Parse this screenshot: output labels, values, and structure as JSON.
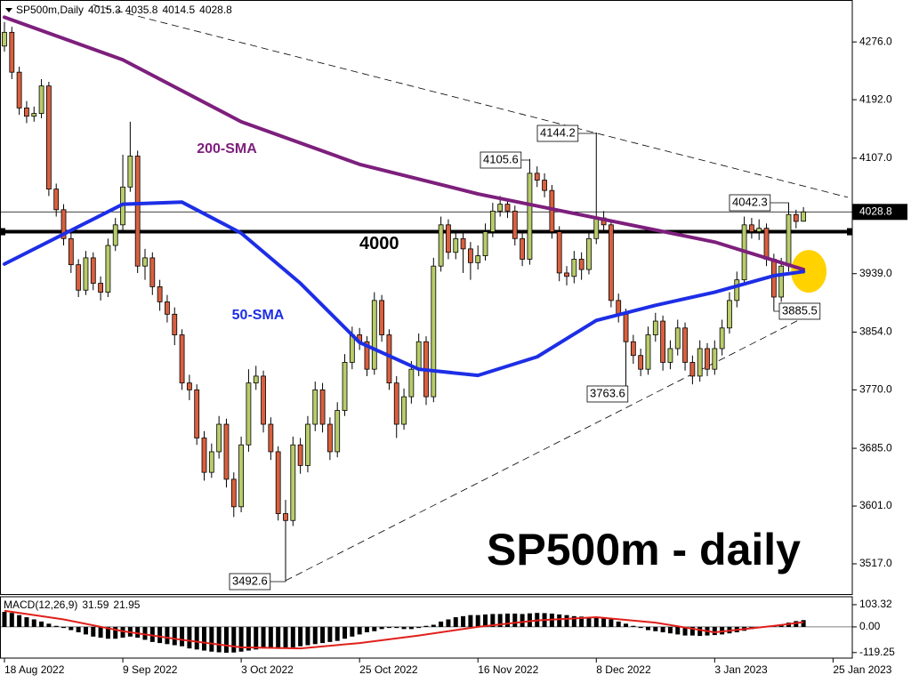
{
  "chart_data": {
    "type": "candlestick",
    "symbol": "SP500m,Daily",
    "watermark": "SP500m - daily",
    "up_color": "#b8cc6a",
    "down_color": "#d9603f",
    "xlim": [
      -0.6,
      114.6
    ],
    "xticks": [
      {
        "value": 0,
        "label": "18 Aug 2022"
      },
      {
        "value": 16,
        "label": "9 Sep 2022"
      },
      {
        "value": 32,
        "label": "3 Oct 2022"
      },
      {
        "value": 48,
        "label": "25 Oct 2022"
      },
      {
        "value": 64,
        "label": "16 Nov 2022"
      },
      {
        "value": 80,
        "label": "8 Dec 2022"
      },
      {
        "value": 96,
        "label": "3 Jan 2023"
      },
      {
        "value": 112,
        "label": "25 Jan 2023"
      }
    ],
    "ylim": [
      3473,
      4337
    ],
    "yticks": [
      {
        "value": 4276,
        "label": "4276.0"
      },
      {
        "value": 4192,
        "label": "4192.0"
      },
      {
        "value": 4107,
        "label": "4107.0"
      },
      {
        "value": 3939,
        "label": "3939.0"
      },
      {
        "value": 3854,
        "label": "3854.0"
      },
      {
        "value": 3770,
        "label": "3770.0"
      },
      {
        "value": 3685,
        "label": "3685.0"
      },
      {
        "value": 3601,
        "label": "3601.0"
      },
      {
        "value": 3517,
        "label": "3517.0"
      }
    ],
    "level": 4000,
    "open": [
      4270,
      4290,
      4232,
      4180,
      4168,
      4172,
      4212,
      4062,
      4032,
      3990,
      3952,
      3915,
      3962,
      3925,
      3912,
      3980,
      4010,
      4065,
      4110,
      3950,
      3962,
      3920,
      3898,
      3880,
      3850,
      3780,
      3770,
      3700,
      3650,
      3680,
      3720,
      3640,
      3600,
      3690,
      3780,
      3790,
      3720,
      3680,
      3590,
      3580,
      3690,
      3660,
      3720,
      3770,
      3720,
      3680,
      3740,
      3810,
      3850,
      3840,
      3800,
      3900,
      3850,
      3780,
      3720,
      3760,
      3800,
      3840,
      3760,
      3950,
      4010,
      3970,
      3990,
      3975,
      3955,
      3965,
      4000,
      4030,
      4040,
      4030,
      3990,
      3960,
      4085,
      4075,
      4060,
      4000,
      3940,
      3935,
      3960,
      3945,
      3990,
      4020,
      4010,
      3900,
      3880,
      3840,
      3820,
      3800,
      3850,
      3870,
      3810,
      3830,
      3860,
      3810,
      3790,
      3830,
      3800,
      3830,
      3860,
      3900,
      3930,
      4010,
      4000,
      4005,
      3960,
      3905,
      3950,
      4025,
      4015.3
    ],
    "high": [
      4305,
      4298,
      4240,
      4190,
      4182,
      4222,
      4218,
      4070,
      4040,
      3998,
      3960,
      3972,
      3970,
      3935,
      3990,
      4020,
      4112,
      4160,
      4118,
      3975,
      3970,
      3930,
      3908,
      3890,
      3858,
      3792,
      3778,
      3710,
      3692,
      3732,
      3728,
      3650,
      3702,
      3800,
      3805,
      3798,
      3730,
      3688,
      3610,
      3702,
      3700,
      3732,
      3782,
      3780,
      3730,
      3752,
      3822,
      3862,
      3860,
      3848,
      3912,
      3908,
      3858,
      3790,
      3772,
      3812,
      3852,
      3848,
      3962,
      4022,
      4018,
      4002,
      4000,
      3985,
      3980,
      4012,
      4042,
      4052,
      4048,
      4038,
      3998,
      4105.6,
      4095,
      4085,
      4068,
      4008,
      3950,
      3972,
      3970,
      4002,
      4144.2,
      4030,
      4018,
      3910,
      3888,
      3850,
      3830,
      3862,
      3882,
      3878,
      3842,
      3872,
      3868,
      3820,
      3842,
      3838,
      3842,
      3872,
      3912,
      3942,
      4022,
      4020,
      4018,
      4012,
      3968,
      3962,
      4042.3,
      4032,
      4035.8
    ],
    "low": [
      4262,
      4222,
      4170,
      4158,
      4160,
      4165,
      4052,
      4022,
      3980,
      3940,
      3905,
      3908,
      3915,
      3900,
      3905,
      3972,
      4002,
      4058,
      3940,
      3930,
      3908,
      3885,
      3868,
      3835,
      3770,
      3755,
      3690,
      3638,
      3642,
      3670,
      3628,
      3585,
      3592,
      3680,
      3770,
      3708,
      3668,
      3580,
      3492.6,
      3572,
      3648,
      3650,
      3710,
      3708,
      3668,
      3672,
      3732,
      3800,
      3828,
      3790,
      3792,
      3840,
      3770,
      3700,
      3712,
      3750,
      3790,
      3748,
      3752,
      3942,
      3960,
      3960,
      3940,
      3930,
      3945,
      3958,
      3992,
      4022,
      4020,
      3980,
      3950,
      3952,
      4065,
      4050,
      3990,
      3928,
      3922,
      3925,
      3930,
      3938,
      3982,
      3998,
      3890,
      3868,
      3763.6,
      3808,
      3790,
      3792,
      3840,
      3798,
      3800,
      3820,
      3798,
      3778,
      3782,
      3790,
      3792,
      3820,
      3852,
      3890,
      3922,
      3990,
      3988,
      3950,
      3885.5,
      3898,
      3942,
      4005,
      4014.5
    ],
    "close": [
      4290,
      4232,
      4180,
      4168,
      4172,
      4212,
      4062,
      4032,
      3990,
      3952,
      3915,
      3962,
      3925,
      3912,
      3980,
      4010,
      4065,
      4110,
      3950,
      3962,
      3920,
      3898,
      3880,
      3850,
      3780,
      3770,
      3700,
      3650,
      3680,
      3720,
      3640,
      3600,
      3690,
      3780,
      3790,
      3720,
      3680,
      3590,
      3580,
      3690,
      3660,
      3720,
      3770,
      3720,
      3680,
      3740,
      3810,
      3850,
      3840,
      3800,
      3900,
      3850,
      3780,
      3720,
      3760,
      3800,
      3840,
      3760,
      3950,
      4010,
      3970,
      3990,
      3975,
      3955,
      3965,
      4000,
      4030,
      4040,
      4030,
      3990,
      3960,
      4085,
      4075,
      4060,
      4000,
      3940,
      3935,
      3960,
      3945,
      3990,
      4020,
      4010,
      3900,
      3880,
      3840,
      3820,
      3800,
      3850,
      3870,
      3810,
      3830,
      3860,
      3810,
      3790,
      3830,
      3800,
      3830,
      3860,
      3900,
      3930,
      4010,
      4000,
      4005,
      3960,
      3905,
      3950,
      4025,
      4015,
      4028.8
    ],
    "series": [
      {
        "name": "200-SMA",
        "color": "#7d1f7c",
        "x": [
          0,
          16,
          32,
          48,
          64,
          80,
          96,
          108
        ],
        "values": [
          4312,
          4250,
          4160,
          4098,
          4055,
          4020,
          3985,
          3945
        ]
      },
      {
        "name": "50-SMA",
        "color": "#1d2ee6",
        "x": [
          0,
          16,
          24,
          32,
          40,
          48,
          56,
          64,
          72,
          80,
          88,
          96,
          104,
          108
        ],
        "values": [
          3953,
          4040,
          4043,
          3998,
          3925,
          3839,
          3800,
          3791,
          3818,
          3871,
          3893,
          3912,
          3936,
          3942
        ]
      }
    ],
    "trendlines": [
      {
        "x": [
          12,
          114
        ],
        "values": [
          4330,
          4050
        ]
      },
      {
        "x": [
          38,
          108
        ],
        "values": [
          3492.6,
          3875
        ]
      }
    ],
    "macd": {
      "name": "MACD(12,26,9)",
      "ylim": [
        -145,
        132
      ],
      "yticks": [
        103.32,
        {
          "value": 0,
          "label": "0.00"
        },
        -119.25
      ],
      "histogram": [
        70,
        65,
        55,
        45,
        35,
        25,
        15,
        5,
        -5,
        -15,
        -25,
        -35,
        -45,
        -50,
        -55,
        -55,
        -50,
        -45,
        -50,
        -60,
        -70,
        -75,
        -80,
        -85,
        -90,
        -100,
        -105,
        -110,
        -115,
        -118,
        -120,
        -119,
        -115,
        -110,
        -105,
        -100,
        -100,
        -102,
        -100,
        -95,
        -90,
        -85,
        -80,
        -75,
        -70,
        -65,
        -55,
        -45,
        -35,
        -25,
        -20,
        -10,
        -5,
        -5,
        -10,
        -10,
        -5,
        5,
        10,
        25,
        35,
        45,
        50,
        55,
        55,
        58,
        60,
        60,
        62,
        62,
        60,
        63,
        65,
        64,
        62,
        58,
        55,
        50,
        48,
        45,
        45,
        42,
        35,
        25,
        15,
        5,
        -5,
        -15,
        -20,
        -25,
        -30,
        -35,
        -40,
        -40,
        -42,
        -40,
        -38,
        -35,
        -30,
        -25,
        -18,
        -10,
        -5,
        0,
        5,
        12,
        20,
        27,
        31.59
      ],
      "signal": {
        "color": "#e0201b",
        "x": [
          0,
          8,
          16,
          24,
          32,
          40,
          48,
          56,
          64,
          72,
          80,
          88,
          96,
          104,
          108
        ],
        "values": [
          75,
          35,
          -20,
          -60,
          -95,
          -100,
          -75,
          -40,
          0,
          30,
          45,
          20,
          -25,
          5,
          21.95
        ]
      }
    }
  }
}
